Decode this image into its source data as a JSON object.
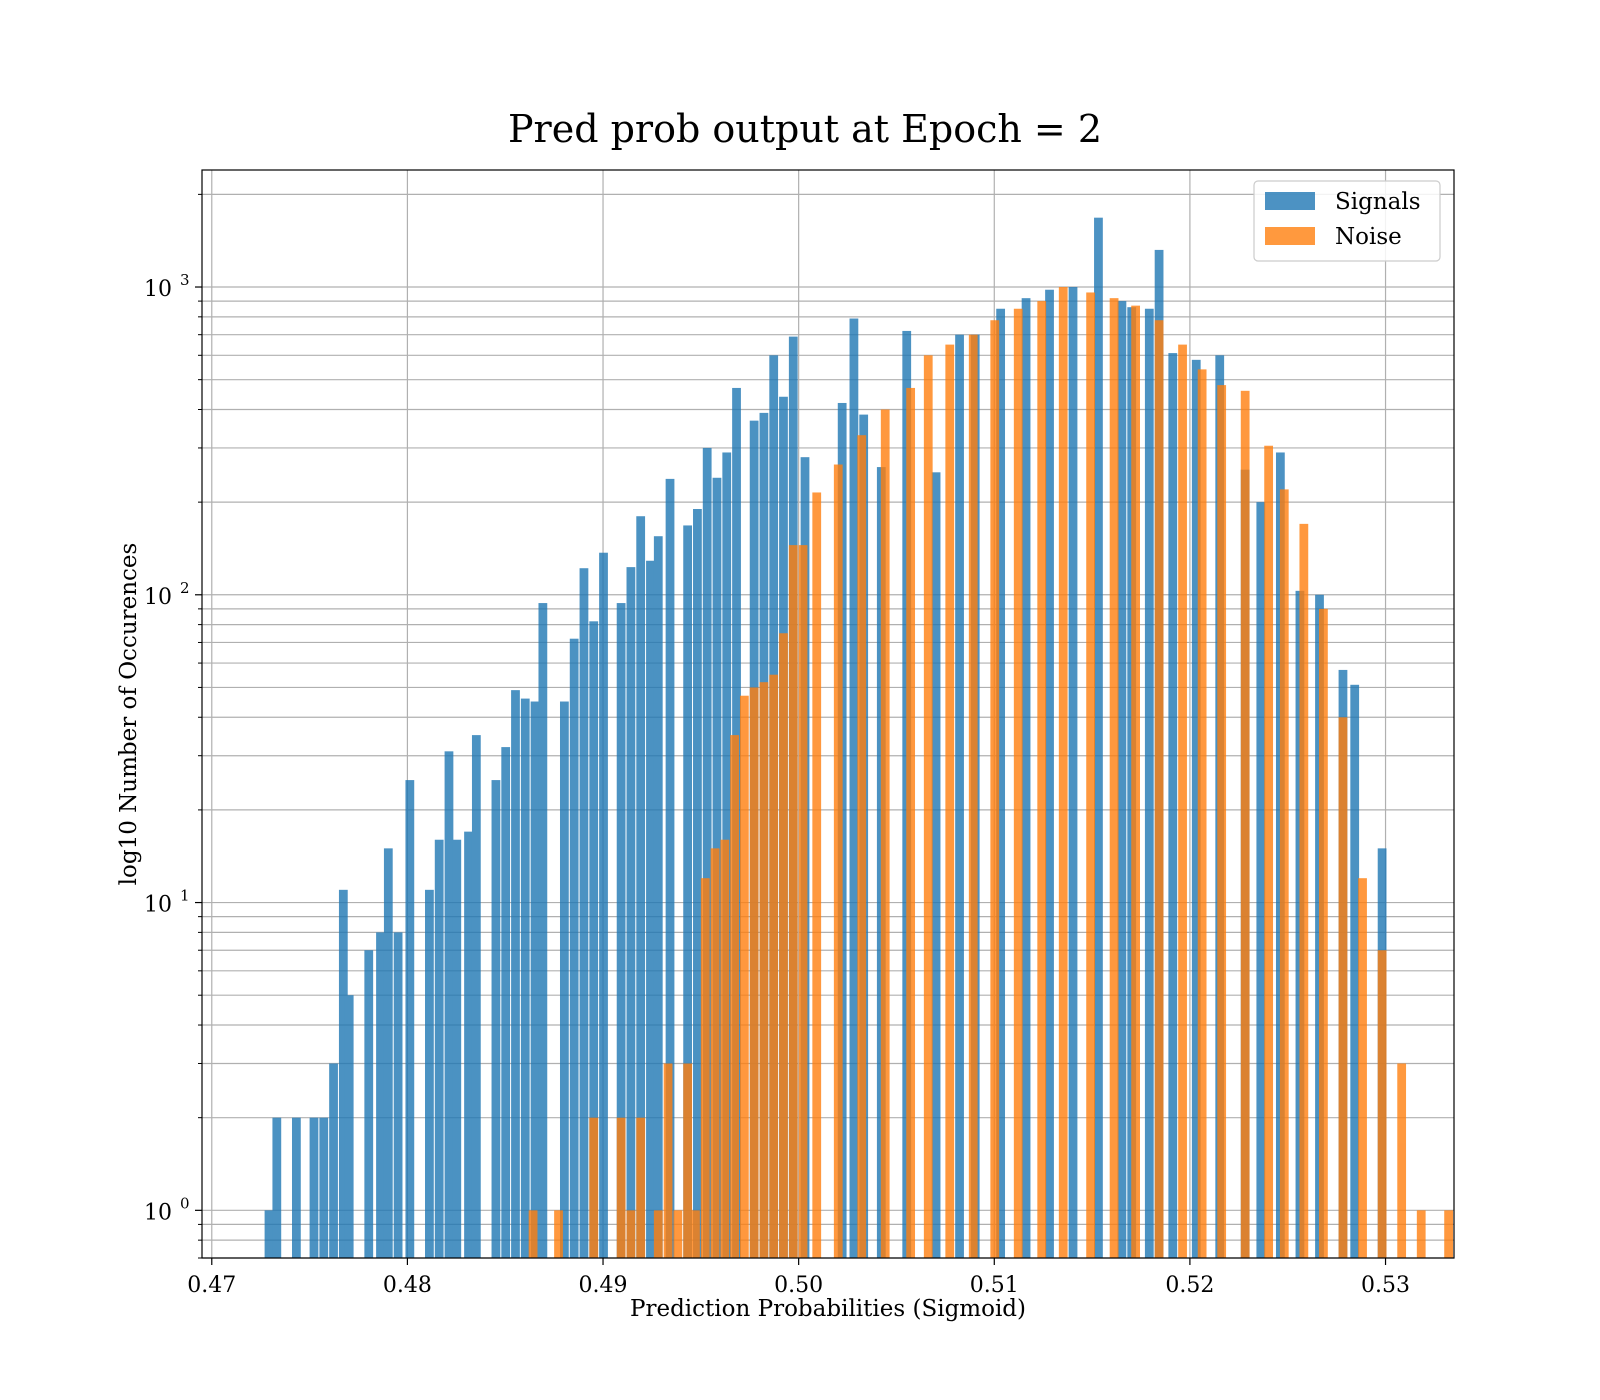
{
  "chart_data": {
    "type": "bar",
    "title": "Pred prob output at Epoch = 2",
    "xlabel": "Prediction Probabilities (Sigmoid)",
    "ylabel": "log10 Number of Occurences",
    "xlim": [
      0.4695,
      0.5335
    ],
    "ylim": [
      0.7,
      2400
    ],
    "yscale": "log",
    "grid": true,
    "legend_position": "top-right",
    "x_ticks": [
      0.47,
      0.48,
      0.49,
      0.5,
      0.51,
      0.52,
      0.53
    ],
    "x_tick_labels": [
      "0.47",
      "0.48",
      "0.49",
      "0.50",
      "0.51",
      "0.52",
      "0.53"
    ],
    "y_ticks": [
      {
        "value": 1,
        "base": "10",
        "exp": "0"
      },
      {
        "value": 10,
        "base": "10",
        "exp": "1"
      },
      {
        "value": 100,
        "base": "10",
        "exp": "2"
      },
      {
        "value": 1000,
        "base": "10",
        "exp": "3"
      }
    ],
    "series": [
      {
        "name": "Signals",
        "color": "#1f77b4",
        "bin_width": 0.0005,
        "bars": [
          [
            0.4727,
            1
          ],
          [
            0.4731,
            2
          ],
          [
            0.4741,
            2
          ],
          [
            0.475,
            2
          ],
          [
            0.4755,
            2
          ],
          [
            0.476,
            3
          ],
          [
            0.4765,
            11
          ],
          [
            0.4768,
            5
          ],
          [
            0.4778,
            7
          ],
          [
            0.4784,
            8
          ],
          [
            0.4788,
            15
          ],
          [
            0.4793,
            8
          ],
          [
            0.4799,
            25
          ],
          [
            0.4809,
            11
          ],
          [
            0.4814,
            16
          ],
          [
            0.4819,
            31
          ],
          [
            0.4823,
            16
          ],
          [
            0.4829,
            17
          ],
          [
            0.4833,
            35
          ],
          [
            0.4843,
            25
          ],
          [
            0.4848,
            32
          ],
          [
            0.4853,
            49
          ],
          [
            0.4858,
            46
          ],
          [
            0.4863,
            45
          ],
          [
            0.4867,
            94
          ],
          [
            0.4878,
            45
          ],
          [
            0.4883,
            72
          ],
          [
            0.4888,
            122
          ],
          [
            0.4893,
            82
          ],
          [
            0.4898,
            137
          ],
          [
            0.4907,
            94
          ],
          [
            0.4912,
            123
          ],
          [
            0.4917,
            180
          ],
          [
            0.4922,
            129
          ],
          [
            0.4926,
            155
          ],
          [
            0.4932,
            238
          ],
          [
            0.4941,
            168
          ],
          [
            0.4946,
            190
          ],
          [
            0.4951,
            300
          ],
          [
            0.4956,
            240
          ],
          [
            0.4961,
            290
          ],
          [
            0.4966,
            470
          ],
          [
            0.4975,
            368
          ],
          [
            0.498,
            390
          ],
          [
            0.4985,
            600
          ],
          [
            0.499,
            440
          ],
          [
            0.4995,
            690
          ],
          [
            0.5001,
            280
          ],
          [
            0.502,
            420
          ],
          [
            0.5026,
            790
          ],
          [
            0.5031,
            385
          ],
          [
            0.504,
            260
          ],
          [
            0.5053,
            720
          ],
          [
            0.5068,
            250
          ],
          [
            0.508,
            700
          ],
          [
            0.5088,
            700
          ],
          [
            0.5101,
            850
          ],
          [
            0.5114,
            920
          ],
          [
            0.5126,
            980
          ],
          [
            0.5138,
            1000
          ],
          [
            0.5151,
            1680
          ],
          [
            0.5163,
            900
          ],
          [
            0.5168,
            860
          ],
          [
            0.5177,
            850
          ],
          [
            0.5182,
            1320
          ],
          [
            0.5189,
            610
          ],
          [
            0.5201,
            580
          ],
          [
            0.5213,
            600
          ],
          [
            0.5226,
            255
          ],
          [
            0.5234,
            200
          ],
          [
            0.5244,
            290
          ],
          [
            0.5254,
            103
          ],
          [
            0.5264,
            100
          ],
          [
            0.5276,
            57
          ],
          [
            0.5282,
            51
          ],
          [
            0.5296,
            15
          ]
        ]
      },
      {
        "name": "Noise",
        "color": "#ff7f0e",
        "bin_width": 0.0005,
        "bars": [
          [
            0.4862,
            1
          ],
          [
            0.4875,
            1
          ],
          [
            0.4893,
            2
          ],
          [
            0.4907,
            2
          ],
          [
            0.4912,
            1
          ],
          [
            0.4917,
            2
          ],
          [
            0.4926,
            1
          ],
          [
            0.4931,
            3
          ],
          [
            0.4936,
            1
          ],
          [
            0.4941,
            3
          ],
          [
            0.4945,
            1
          ],
          [
            0.495,
            12
          ],
          [
            0.4955,
            15
          ],
          [
            0.496,
            16
          ],
          [
            0.4965,
            35
          ],
          [
            0.497,
            47
          ],
          [
            0.4975,
            50
          ],
          [
            0.498,
            52
          ],
          [
            0.4985,
            55
          ],
          [
            0.499,
            75
          ],
          [
            0.4995,
            145
          ],
          [
            0.5,
            145
          ],
          [
            0.5007,
            215
          ],
          [
            0.5018,
            265
          ],
          [
            0.503,
            330
          ],
          [
            0.5042,
            400
          ],
          [
            0.5055,
            470
          ],
          [
            0.5064,
            600
          ],
          [
            0.5075,
            650
          ],
          [
            0.5087,
            700
          ],
          [
            0.5098,
            780
          ],
          [
            0.511,
            850
          ],
          [
            0.5122,
            900
          ],
          [
            0.5133,
            1000
          ],
          [
            0.5147,
            960
          ],
          [
            0.5159,
            920
          ],
          [
            0.517,
            870
          ],
          [
            0.5182,
            780
          ],
          [
            0.5194,
            650
          ],
          [
            0.5204,
            540
          ],
          [
            0.5214,
            480
          ],
          [
            0.5226,
            460
          ],
          [
            0.5238,
            305
          ],
          [
            0.5246,
            220
          ],
          [
            0.5256,
            170
          ],
          [
            0.5266,
            90
          ],
          [
            0.5276,
            40
          ],
          [
            0.5286,
            12
          ],
          [
            0.5296,
            7
          ],
          [
            0.5306,
            3
          ],
          [
            0.5316,
            1
          ],
          [
            0.533,
            1
          ]
        ]
      }
    ]
  }
}
